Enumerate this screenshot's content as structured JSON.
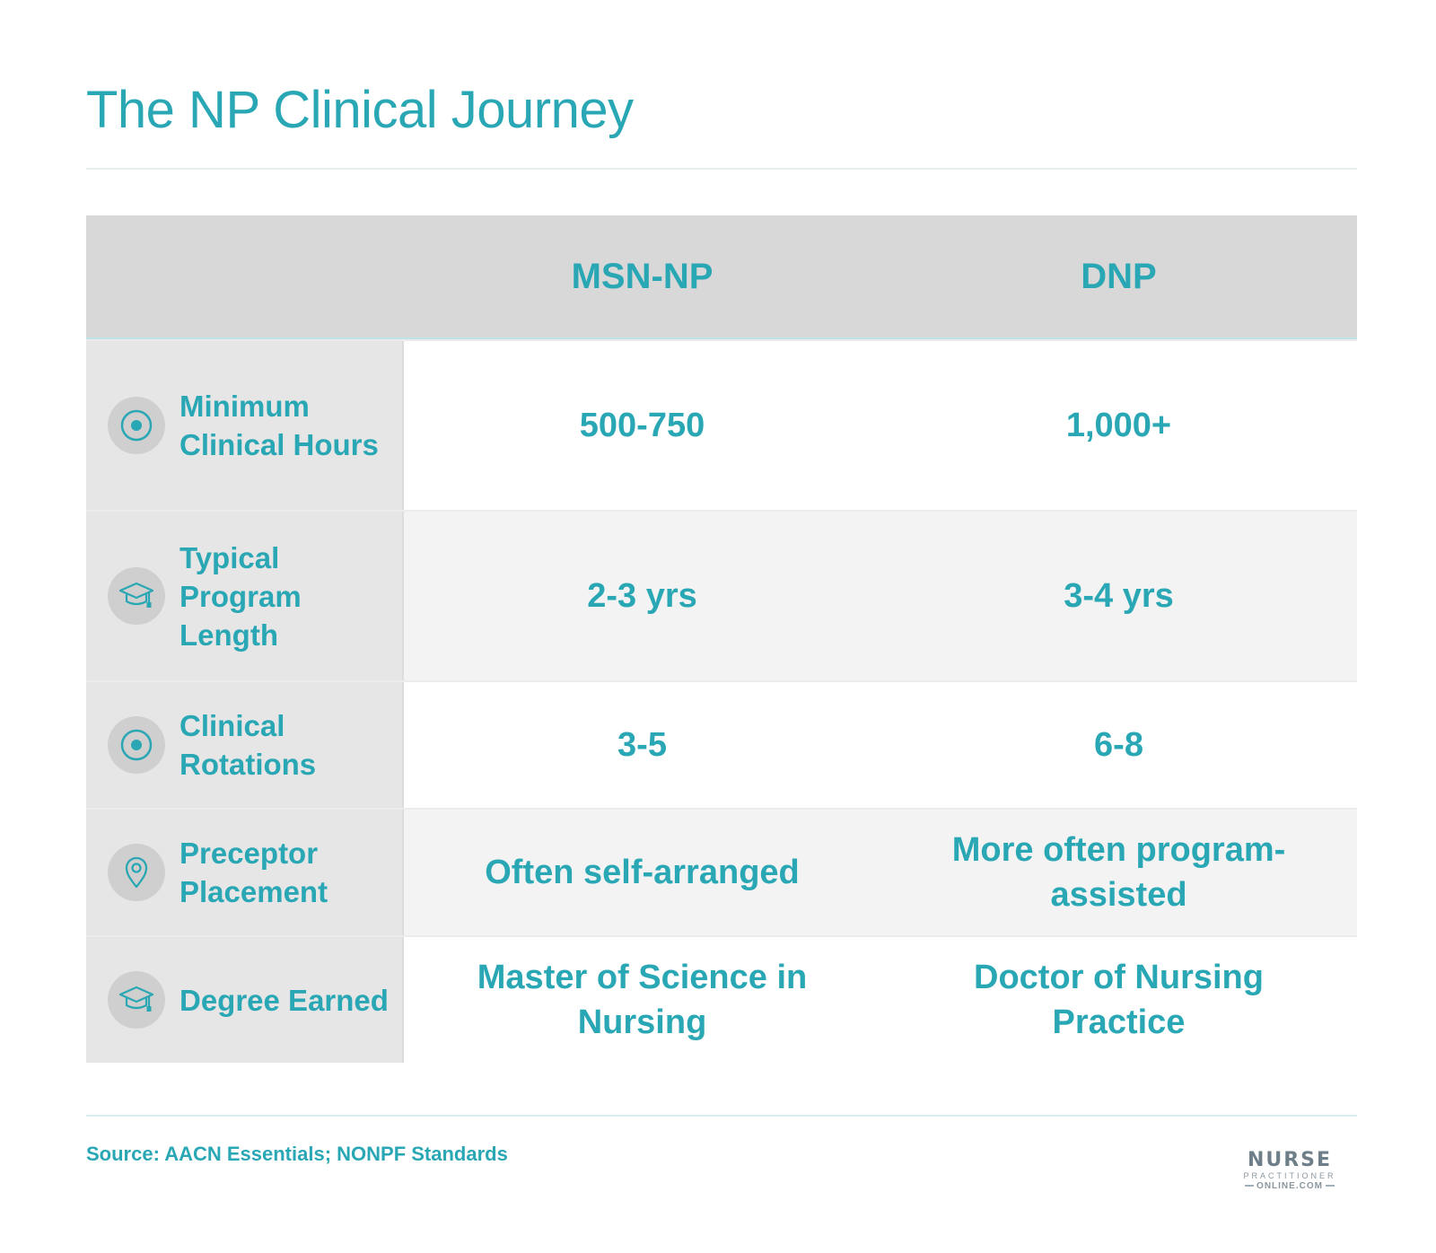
{
  "title": "The NP Clinical Journey",
  "columns": [
    "MSN-NP",
    "DNP"
  ],
  "rows": [
    {
      "label": "Minimum Clinical Hours",
      "icon": "target-icon",
      "msn": "500-750",
      "dnp": "1,000+"
    },
    {
      "label": "Typical Program Length",
      "icon": "graduation-cap-icon",
      "msn": "2-3 yrs",
      "dnp": "3-4 yrs"
    },
    {
      "label": "Clinical Rotations",
      "icon": "target-icon",
      "msn": "3-5",
      "dnp": "6-8"
    },
    {
      "label": "Preceptor Placement",
      "icon": "location-pin-icon",
      "msn": "Often self-arranged",
      "dnp": "More often program-assisted"
    },
    {
      "label": "Degree Earned",
      "icon": "graduation-cap-icon",
      "msn": "Master of Science in Nursing",
      "dnp": "Doctor of Nursing Practice"
    }
  ],
  "source": "Source: AACN Essentials; NONPF Standards",
  "logo": {
    "line1": "NURSE",
    "line2": "PRACTITIONER",
    "line3": "ONLINE.COM"
  },
  "colors": {
    "accent": "#2aa7b4",
    "header_bg": "#d8d8d8",
    "label_bg": "#e6e6e6"
  }
}
